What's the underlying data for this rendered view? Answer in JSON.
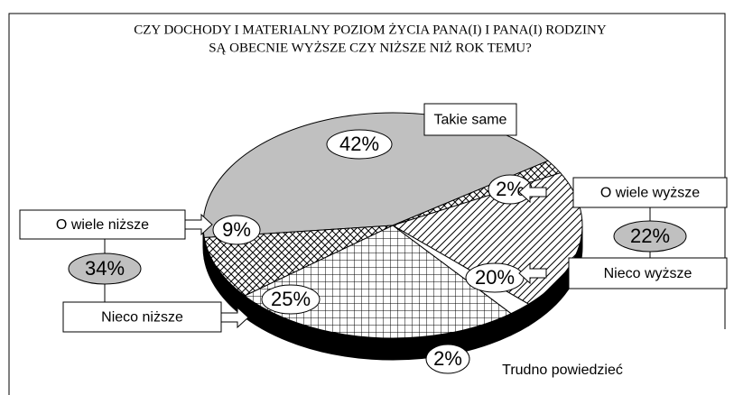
{
  "chart_data": {
    "type": "pie",
    "title": [
      "CZY DOCHODY I MATERIALNY POZIOM ŻYCIA PANA(I) I PANA(I) RODZINY",
      "SĄ OBECNIE WYŻSZE CZY NIŻSZE NIŻ ROK TEMU?"
    ],
    "categories": [
      "Takie same",
      "O wiele wyższe",
      "Nieco wyższe",
      "Trudno powiedzieć",
      "Nieco niższe",
      "O wiele niższe"
    ],
    "values": [
      42,
      2,
      20,
      2,
      25,
      9
    ],
    "value_labels": [
      "42%",
      "2%",
      "20%",
      "2%",
      "25%",
      "9%"
    ],
    "colors": [
      "#c0c0c0",
      "#ffffff",
      "#ffffff",
      "#ffffff",
      "#ffffff",
      "#ffffff"
    ],
    "patterns": [
      "solid",
      "crosshatch",
      "diagonal",
      "solid",
      "grid",
      "crosshatch"
    ],
    "group_totals": [
      {
        "value": 22,
        "label": "22%"
      },
      {
        "value": 34,
        "label": "34%"
      }
    ]
  }
}
